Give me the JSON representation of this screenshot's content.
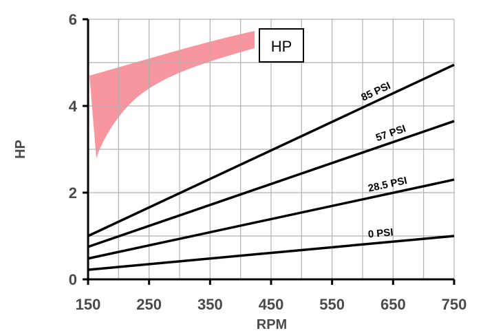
{
  "chart_data": {
    "type": "line",
    "title": "HP",
    "xlabel": "RPM",
    "ylabel": "HP",
    "xlim": [
      150,
      750
    ],
    "ylim": [
      0,
      6
    ],
    "x_ticks": [
      150,
      250,
      350,
      450,
      550,
      650,
      750
    ],
    "y_ticks": [
      0,
      2,
      4,
      6
    ],
    "grid": true,
    "series": [
      {
        "name": "0 PSI",
        "x": [
          150,
          750
        ],
        "values": [
          0.22,
          1.0
        ]
      },
      {
        "name": "28.5 PSI",
        "x": [
          150,
          750
        ],
        "values": [
          0.48,
          2.3
        ]
      },
      {
        "name": "57 PSI",
        "x": [
          150,
          750
        ],
        "values": [
          0.75,
          3.65
        ]
      },
      {
        "name": "85 PSI",
        "x": [
          150,
          750
        ],
        "values": [
          1.0,
          4.95
        ]
      }
    ],
    "colors": {
      "lines": "#000000",
      "grid": "#b0b0b0",
      "axis": "#000000",
      "watermark": "#f04050"
    }
  }
}
